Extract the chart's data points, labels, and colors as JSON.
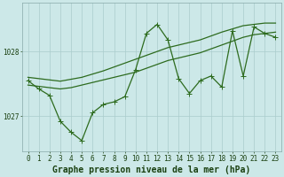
{
  "title": "Graphe pression niveau de la mer (hPa)",
  "background_color": "#cce8e8",
  "grid_color": "#aacccc",
  "line_color": "#2d6b1e",
  "x_values": [
    0,
    1,
    2,
    3,
    4,
    5,
    6,
    7,
    8,
    9,
    10,
    11,
    12,
    13,
    14,
    15,
    16,
    17,
    18,
    19,
    20,
    21,
    22,
    23
  ],
  "main_y": [
    1027.55,
    1027.42,
    1027.32,
    1026.92,
    1026.75,
    1026.62,
    1027.05,
    1027.18,
    1027.22,
    1027.3,
    1027.72,
    1028.28,
    1028.42,
    1028.18,
    1027.58,
    1027.35,
    1027.55,
    1027.62,
    1027.45,
    1028.32,
    1027.62,
    1028.38,
    1028.28,
    1028.22
  ],
  "upper_y": [
    1027.6,
    1027.58,
    1027.56,
    1027.54,
    1027.57,
    1027.6,
    1027.65,
    1027.7,
    1027.76,
    1027.82,
    1027.88,
    1027.94,
    1028.0,
    1028.06,
    1028.1,
    1028.14,
    1028.18,
    1028.24,
    1028.3,
    1028.35,
    1028.4,
    1028.42,
    1028.44,
    1028.44
  ],
  "lower_y": [
    1027.48,
    1027.46,
    1027.44,
    1027.42,
    1027.44,
    1027.48,
    1027.52,
    1027.56,
    1027.6,
    1027.64,
    1027.68,
    1027.74,
    1027.8,
    1027.86,
    1027.9,
    1027.94,
    1027.98,
    1028.04,
    1028.1,
    1028.16,
    1028.22,
    1028.26,
    1028.28,
    1028.3
  ],
  "ylim": [
    1026.45,
    1028.75
  ],
  "yticks": [
    1027.0,
    1028.0
  ],
  "ytick_labels": [
    "1027",
    "1028"
  ],
  "xlim": [
    -0.5,
    23.5
  ],
  "xticks": [
    0,
    1,
    2,
    3,
    4,
    5,
    6,
    7,
    8,
    9,
    10,
    11,
    12,
    13,
    14,
    15,
    16,
    17,
    18,
    19,
    20,
    21,
    22,
    23
  ],
  "title_fontsize": 7.0,
  "tick_fontsize": 5.5,
  "line_width": 0.9,
  "marker_size": 2.2,
  "figsize": [
    3.2,
    2.0
  ],
  "dpi": 100
}
